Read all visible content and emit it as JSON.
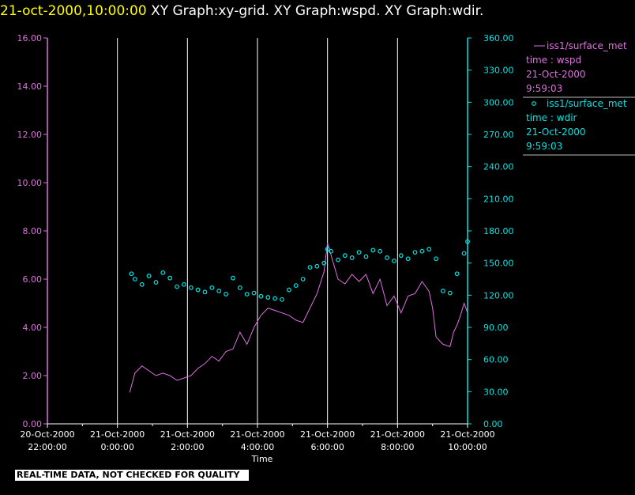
{
  "header": {
    "timestamp": "21-oct-2000,10:00:00",
    "graphs": "XY Graph:xy-grid.  XY Graph:wspd.  XY Graph:wdir."
  },
  "footer": {
    "quality_note": "REAL-TIME DATA, NOT CHECKED FOR QUALITY"
  },
  "colors": {
    "background": "#000000",
    "title_time": "#ffff00",
    "left_axis": "#e070e0",
    "right_axis": "#00e5e5",
    "grid": "#ffffff"
  },
  "chart_data": {
    "type": "line",
    "xlabel": "Time",
    "x_ticks": [
      {
        "hours": -2,
        "line1": "20-Oct-2000",
        "line2": "22:00:00"
      },
      {
        "hours": 0,
        "line1": "21-Oct-2000",
        "line2": "0:00:00"
      },
      {
        "hours": 2,
        "line1": "21-Oct-2000",
        "line2": "2:00:00"
      },
      {
        "hours": 4,
        "line1": "21-Oct-2000",
        "line2": "4:00:00"
      },
      {
        "hours": 6,
        "line1": "21-Oct-2000",
        "line2": "6:00:00"
      },
      {
        "hours": 8,
        "line1": "21-Oct-2000",
        "line2": "8:00:00"
      },
      {
        "hours": 10,
        "line1": "21-Oct-2000",
        "line2": "10:00:00"
      }
    ],
    "xlim_hours": [
      -2,
      10
    ],
    "vertical_grid_hours": [
      0,
      2,
      4,
      6,
      8,
      10
    ],
    "left_axis": {
      "ylim": [
        0,
        16
      ],
      "ticks": [
        "0.00",
        "2.00",
        "4.00",
        "6.00",
        "8.00",
        "10.00",
        "12.00",
        "14.00",
        "16.00"
      ]
    },
    "right_axis": {
      "ylim": [
        0,
        360
      ],
      "ticks": [
        "0.00",
        "30.00",
        "60.00",
        "90.00",
        "120.00",
        "150.00",
        "180.00",
        "210.00",
        "240.00",
        "270.00",
        "300.00",
        "330.00",
        "360.00"
      ]
    },
    "legend": [
      {
        "marker": "line",
        "source": "iss1/surface_met",
        "variable": "time : wspd",
        "date": "21-Oct-2000",
        "time": "9:59:03"
      },
      {
        "marker": "circle",
        "source": "iss1/surface_met",
        "variable": "time : wdir",
        "date": "21-Oct-2000",
        "time": "9:59:03"
      }
    ],
    "series": [
      {
        "axis": "left",
        "style": "line",
        "x": [
          0.35,
          0.5,
          0.7,
          0.9,
          1.1,
          1.3,
          1.5,
          1.7,
          1.9,
          2.1,
          2.3,
          2.5,
          2.7,
          2.9,
          3.1,
          3.3,
          3.5,
          3.7,
          3.9,
          4.1,
          4.3,
          4.5,
          4.7,
          4.9,
          5.1,
          5.3,
          5.5,
          5.7,
          5.9,
          6.0,
          6.1,
          6.3,
          6.5,
          6.7,
          6.9,
          7.1,
          7.3,
          7.5,
          7.7,
          7.9,
          8.1,
          8.3,
          8.5,
          8.7,
          8.9,
          9.0,
          9.1,
          9.3,
          9.5,
          9.6,
          9.7,
          9.8,
          9.9,
          10.0
        ],
        "y": [
          1.3,
          2.1,
          2.4,
          2.2,
          2.0,
          2.1,
          2.0,
          1.8,
          1.9,
          2.0,
          2.3,
          2.5,
          2.8,
          2.6,
          3.0,
          3.1,
          3.8,
          3.3,
          4.0,
          4.5,
          4.8,
          4.7,
          4.6,
          4.5,
          4.3,
          4.2,
          4.8,
          5.4,
          6.3,
          7.5,
          7.0,
          6.0,
          5.8,
          6.2,
          5.9,
          6.2,
          5.4,
          6.0,
          4.9,
          5.3,
          4.6,
          5.3,
          5.4,
          5.9,
          5.5,
          4.8,
          3.6,
          3.3,
          3.2,
          3.8,
          4.1,
          4.5,
          5.0,
          4.6
        ]
      },
      {
        "axis": "right",
        "style": "circle",
        "x": [
          0.4,
          0.5,
          0.7,
          0.9,
          1.1,
          1.3,
          1.5,
          1.7,
          1.9,
          2.1,
          2.3,
          2.5,
          2.7,
          2.9,
          3.1,
          3.3,
          3.5,
          3.7,
          3.9,
          4.1,
          4.3,
          4.5,
          4.7,
          4.9,
          5.1,
          5.3,
          5.5,
          5.7,
          5.9,
          6.0,
          6.1,
          6.3,
          6.5,
          6.7,
          6.9,
          7.1,
          7.3,
          7.5,
          7.7,
          7.9,
          8.1,
          8.3,
          8.5,
          8.7,
          8.9,
          9.1,
          9.3,
          9.5,
          9.7,
          9.9,
          10.0
        ],
        "y": [
          140,
          135,
          130,
          138,
          132,
          141,
          136,
          128,
          130,
          127,
          125,
          123,
          127,
          124,
          121,
          136,
          127,
          121,
          122,
          119,
          118,
          117,
          116,
          125,
          129,
          135,
          146,
          147,
          150,
          163,
          161,
          153,
          157,
          155,
          160,
          156,
          162,
          161,
          155,
          152,
          157,
          154,
          160,
          161,
          163,
          154,
          124,
          122,
          140,
          159,
          170
        ]
      }
    ]
  }
}
